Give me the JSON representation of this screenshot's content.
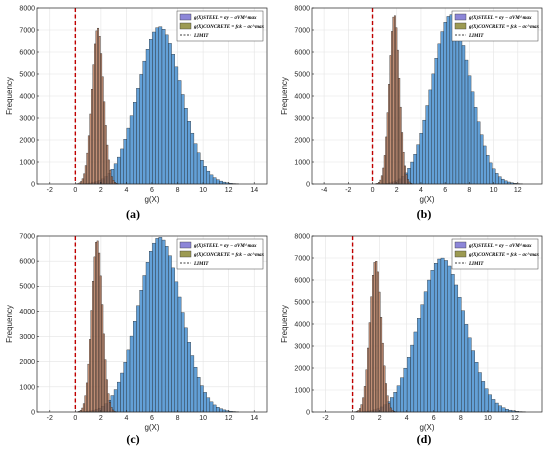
{
  "chart_data": [
    {
      "type": "bar",
      "caption": "(a)",
      "xlabel": "g(X)",
      "ylabel": "Frequency",
      "xlim": [
        -3,
        15
      ],
      "ylim": [
        0,
        8000
      ],
      "xticks": [
        -2,
        0,
        2,
        4,
        6,
        8,
        10,
        12,
        14
      ],
      "yticks": [
        0,
        1000,
        2000,
        3000,
        4000,
        5000,
        6000,
        7000,
        8000
      ],
      "grid": true,
      "legend_position": "top-right",
      "limit_x": 0,
      "series": [
        {
          "name": "g(X)STEEL = σy − σVM^max",
          "kind": "steel",
          "color": "#5b9bd5",
          "peak_x": 6.6,
          "peak": 7150,
          "sd": 1.7,
          "bin_width": 0.25
        },
        {
          "name": "g(X)CONCRETE = fck − σc^max",
          "kind": "concrete",
          "color": "#b07050",
          "peak_x": 1.75,
          "peak": 7100,
          "sd": 0.45,
          "bin_width": 0.12
        },
        {
          "name": "LIMIT",
          "kind": "limit",
          "color": "#c00000"
        }
      ]
    },
    {
      "type": "bar",
      "caption": "(b)",
      "xlabel": "g(X)",
      "ylabel": "Frequency",
      "xlim": [
        -5,
        14
      ],
      "ylim": [
        0,
        8000
      ],
      "xticks": [
        -4,
        -2,
        0,
        2,
        4,
        6,
        8,
        10,
        12
      ],
      "yticks": [
        0,
        1000,
        2000,
        3000,
        4000,
        5000,
        6000,
        7000,
        8000
      ],
      "grid": true,
      "legend_position": "top-right",
      "limit_x": 0,
      "series": [
        {
          "name": "g(X)STEEL = σy − σVM^max",
          "kind": "steel",
          "color": "#5b9bd5",
          "peak_x": 6.5,
          "peak": 7700,
          "sd": 1.6,
          "bin_width": 0.25
        },
        {
          "name": "g(X)CONCRETE = fck − σc^max",
          "kind": "concrete",
          "color": "#b07050",
          "peak_x": 1.8,
          "peak": 7700,
          "sd": 0.42,
          "bin_width": 0.12
        },
        {
          "name": "LIMIT",
          "kind": "limit",
          "color": "#c00000"
        }
      ]
    },
    {
      "type": "bar",
      "caption": "(c)",
      "xlabel": "g(X)",
      "ylabel": "Frequency",
      "xlim": [
        -3,
        15
      ],
      "ylim": [
        0,
        7000
      ],
      "xticks": [
        -2,
        0,
        2,
        4,
        6,
        8,
        10,
        12,
        14
      ],
      "yticks": [
        0,
        1000,
        2000,
        3000,
        4000,
        5000,
        6000,
        7000
      ],
      "grid": true,
      "legend_position": "top-right",
      "limit_x": 0,
      "series": [
        {
          "name": "g(X)STEEL = σy − σVM^max",
          "kind": "steel",
          "color": "#5b9bd5",
          "peak_x": 6.6,
          "peak": 6950,
          "sd": 1.7,
          "bin_width": 0.25
        },
        {
          "name": "g(X)CONCRETE = fck − σc^max",
          "kind": "concrete",
          "color": "#b07050",
          "peak_x": 1.7,
          "peak": 6850,
          "sd": 0.42,
          "bin_width": 0.12
        },
        {
          "name": "LIMIT",
          "kind": "limit",
          "color": "#c00000"
        }
      ]
    },
    {
      "type": "bar",
      "caption": "(d)",
      "xlabel": "g(X)",
      "ylabel": "Frequency",
      "xlim": [
        -3,
        14
      ],
      "ylim": [
        0,
        8000
      ],
      "xticks": [
        -2,
        0,
        2,
        4,
        6,
        8,
        10,
        12
      ],
      "yticks": [
        0,
        1000,
        2000,
        3000,
        4000,
        5000,
        6000,
        7000,
        8000
      ],
      "grid": true,
      "legend_position": "top-right",
      "limit_x": 0,
      "series": [
        {
          "name": "g(X)STEEL = σy − σVM^max",
          "kind": "steel",
          "color": "#5b9bd5",
          "peak_x": 6.6,
          "peak": 7000,
          "sd": 1.7,
          "bin_width": 0.25
        },
        {
          "name": "g(X)CONCRETE = fck − σc^max",
          "kind": "concrete",
          "color": "#b07050",
          "peak_x": 1.7,
          "peak": 6900,
          "sd": 0.42,
          "bin_width": 0.12
        },
        {
          "name": "LIMIT",
          "kind": "limit",
          "color": "#c00000"
        }
      ]
    }
  ]
}
